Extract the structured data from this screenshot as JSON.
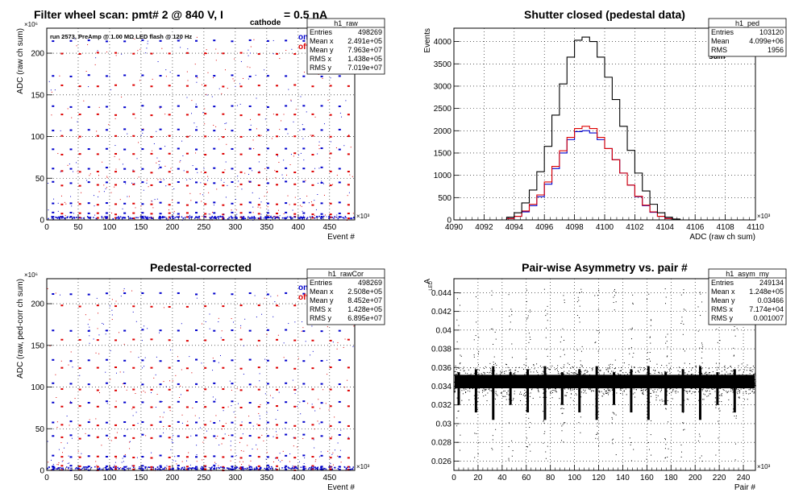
{
  "colors": {
    "on": "#0000cc",
    "off": "#dd0000",
    "sum": "#000000",
    "frame": "#000000"
  },
  "chart_data": [
    {
      "id": "raw",
      "type": "scatter",
      "title": "Filter wheel scan: pmt#   2 @   840 V, I",
      "title_sub": "cathode",
      "title_tail": " = 0.5 nA",
      "note": "run 2573, PreAmp @ 1.00 MΩ   LED flash @  120 Hz",
      "xlabel": "Event #",
      "ylabel": "ADC (raw ch sum)",
      "x_exponent": "×10³",
      "y_exponent": "×10⁶",
      "xlim": [
        0,
        490
      ],
      "ylim": [
        0,
        230
      ],
      "xticks": [
        0,
        50,
        100,
        150,
        200,
        250,
        300,
        350,
        400,
        450
      ],
      "yticks": [
        0,
        50,
        100,
        150,
        200
      ],
      "grid": true,
      "legend": {
        "labels": [
          "on",
          "off"
        ],
        "placement": "top-right"
      },
      "stats": {
        "name": "h1_raw",
        "rows": [
          [
            "Entries",
            "498269"
          ],
          [
            "Mean x",
            "2.491e+05"
          ],
          [
            "Mean y",
            "7.963e+07"
          ],
          [
            "RMS x",
            "1.438e+05"
          ],
          [
            "RMS y",
            "7.019e+07"
          ]
        ]
      },
      "levels": [
        215,
        173,
        136,
        108,
        85,
        62,
        45,
        20,
        8,
        3
      ],
      "period": 28.5
    },
    {
      "id": "ped",
      "type": "line",
      "title": "Shutter closed (pedestal data)",
      "xlabel": "ADC (raw ch sum)",
      "ylabel": "Events",
      "x_exponent": "×10³",
      "xlim": [
        4090,
        4110
      ],
      "ylim": [
        0,
        4300
      ],
      "xticks": [
        4090,
        4092,
        4094,
        4096,
        4098,
        4100,
        4102,
        4104,
        4106,
        4108,
        4110
      ],
      "yticks": [
        0,
        500,
        1000,
        1500,
        2000,
        2500,
        3000,
        3500,
        4000
      ],
      "grid": true,
      "legend": {
        "labels": [
          "on",
          "off",
          "sum"
        ],
        "placement": "top-right"
      },
      "stats": {
        "name": "h1_ped",
        "rows": [
          [
            "Entries",
            "103120"
          ],
          [
            "Mean",
            "4.099e+06"
          ],
          [
            "RMS",
            "1956"
          ]
        ]
      },
      "bin_edges": [
        4093.5,
        4094,
        4094.5,
        4095,
        4095.5,
        4096,
        4096.5,
        4097,
        4097.5,
        4098,
        4098.5,
        4099,
        4099.5,
        4100,
        4100.5,
        4101,
        4101.5,
        4102,
        4102.5,
        4103,
        4103.5,
        4104,
        4104.5,
        4105
      ],
      "series": [
        {
          "name": "on",
          "values": [
            30,
            80,
            180,
            320,
            520,
            800,
            1150,
            1500,
            1800,
            1980,
            2000,
            1950,
            1800,
            1600,
            1350,
            1050,
            780,
            520,
            320,
            170,
            80,
            30,
            10
          ]
        },
        {
          "name": "off",
          "values": [
            30,
            80,
            200,
            350,
            560,
            850,
            1200,
            1550,
            1850,
            2050,
            2100,
            2050,
            1850,
            1600,
            1350,
            1050,
            780,
            530,
            330,
            180,
            80,
            30,
            10
          ]
        },
        {
          "name": "sum",
          "values": [
            60,
            160,
            380,
            670,
            1080,
            1650,
            2350,
            3050,
            3650,
            4030,
            4100,
            4000,
            3650,
            3200,
            2700,
            2100,
            1560,
            1050,
            650,
            350,
            160,
            60,
            20
          ]
        }
      ]
    },
    {
      "id": "rawCor",
      "type": "scatter",
      "title": "Pedestal-corrected",
      "xlabel": "Event #",
      "ylabel": "ADC (raw, ped-corr ch sum)",
      "x_exponent": "×10³",
      "y_exponent": "×10⁶",
      "xlim": [
        0,
        490
      ],
      "ylim": [
        0,
        230
      ],
      "xticks": [
        0,
        50,
        100,
        150,
        200,
        250,
        300,
        350,
        400,
        450
      ],
      "yticks": [
        0,
        50,
        100,
        150,
        200
      ],
      "grid": true,
      "legend": {
        "labels": [
          "on",
          "off"
        ],
        "placement": "top-right"
      },
      "stats": {
        "name": "h1_rawCor",
        "rows": [
          [
            "Entries",
            "498269"
          ],
          [
            "Mean x",
            "2.508e+05"
          ],
          [
            "Mean y",
            "8.452e+07"
          ],
          [
            "RMS x",
            "1.428e+05"
          ],
          [
            "RMS y",
            "6.895e+07"
          ]
        ]
      },
      "levels": [
        212,
        168,
        132,
        104,
        82,
        58,
        42,
        17,
        5,
        1
      ],
      "period": 28.5
    },
    {
      "id": "asym",
      "type": "scatter",
      "title": "Pair-wise Asymmetry vs. pair #",
      "xlabel": "Pair #",
      "ylabel": "A",
      "ylabel_sub": "LED",
      "x_exponent": "×10³",
      "xlim": [
        0,
        250
      ],
      "ylim": [
        0.025,
        0.0455
      ],
      "xticks": [
        0,
        20,
        40,
        60,
        80,
        100,
        120,
        140,
        160,
        180,
        200,
        220,
        240
      ],
      "yticks": [
        0.026,
        0.028,
        0.03,
        0.032,
        0.034,
        0.036,
        0.038,
        0.04,
        0.042,
        0.044
      ],
      "grid": true,
      "stats": {
        "name": "h1_asym_my",
        "rows": [
          [
            "Entries",
            "249134"
          ],
          [
            "Mean x",
            "1.248e+05"
          ],
          [
            "Mean y",
            "0.03466"
          ],
          [
            "RMS x",
            "7.174e+04"
          ],
          [
            "RMS y",
            "0.001007"
          ]
        ]
      },
      "band_center": 0.0345,
      "band_halfwidth": 0.0012,
      "spike_period": 14.3
    }
  ]
}
